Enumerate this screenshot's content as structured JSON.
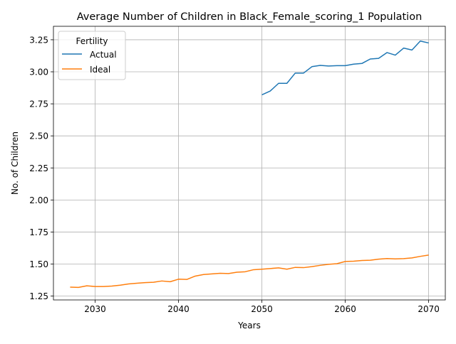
{
  "chart_data": {
    "type": "line",
    "title": "Average Number of Children in Black_Female_scoring_1 Population",
    "xlabel": "Years",
    "ylabel": "No. of Children",
    "xlim": [
      2025,
      2072
    ],
    "ylim": [
      1.22,
      3.355
    ],
    "xticks": [
      2030,
      2040,
      2050,
      2060,
      2070
    ],
    "yticks": [
      1.25,
      1.5,
      1.75,
      2.0,
      2.25,
      2.5,
      2.75,
      3.0,
      3.25
    ],
    "xtick_labels": [
      "2030",
      "2040",
      "2050",
      "2060",
      "2070"
    ],
    "ytick_labels": [
      "1.25",
      "1.50",
      "1.75",
      "2.00",
      "2.25",
      "2.50",
      "2.75",
      "3.00",
      "3.25"
    ],
    "grid": true,
    "legend": {
      "title": "Fertility",
      "placement": "top-left"
    },
    "series": [
      {
        "name": "Actual",
        "color": "#1f77b4",
        "x": [
          2050,
          2051,
          2052,
          2053,
          2054,
          2055,
          2056,
          2057,
          2058,
          2059,
          2060,
          2061,
          2062,
          2063,
          2064,
          2065,
          2066,
          2067,
          2068,
          2069,
          2070
        ],
        "y": [
          2.82,
          2.85,
          2.91,
          2.91,
          2.99,
          2.99,
          3.04,
          3.05,
          3.045,
          3.048,
          3.048,
          3.06,
          3.065,
          3.1,
          3.105,
          3.15,
          3.13,
          3.185,
          3.17,
          3.24,
          3.225
        ]
      },
      {
        "name": "Ideal",
        "color": "#ff7f0e",
        "x": [
          2027,
          2028,
          2029,
          2030,
          2031,
          2032,
          2033,
          2034,
          2035,
          2036,
          2037,
          2038,
          2039,
          2040,
          2041,
          2042,
          2043,
          2044,
          2045,
          2046,
          2047,
          2048,
          2049,
          2050,
          2051,
          2052,
          2053,
          2054,
          2055,
          2056,
          2057,
          2058,
          2059,
          2060,
          2061,
          2062,
          2063,
          2064,
          2065,
          2066,
          2067,
          2068,
          2069,
          2070
        ],
        "y": [
          1.32,
          1.318,
          1.33,
          1.325,
          1.325,
          1.328,
          1.335,
          1.345,
          1.35,
          1.355,
          1.358,
          1.368,
          1.362,
          1.382,
          1.38,
          1.406,
          1.418,
          1.423,
          1.428,
          1.426,
          1.436,
          1.44,
          1.456,
          1.46,
          1.465,
          1.47,
          1.46,
          1.474,
          1.472,
          1.48,
          1.49,
          1.498,
          1.503,
          1.52,
          1.522,
          1.528,
          1.53,
          1.538,
          1.543,
          1.54,
          1.542,
          1.548,
          1.56,
          1.57
        ]
      }
    ]
  }
}
